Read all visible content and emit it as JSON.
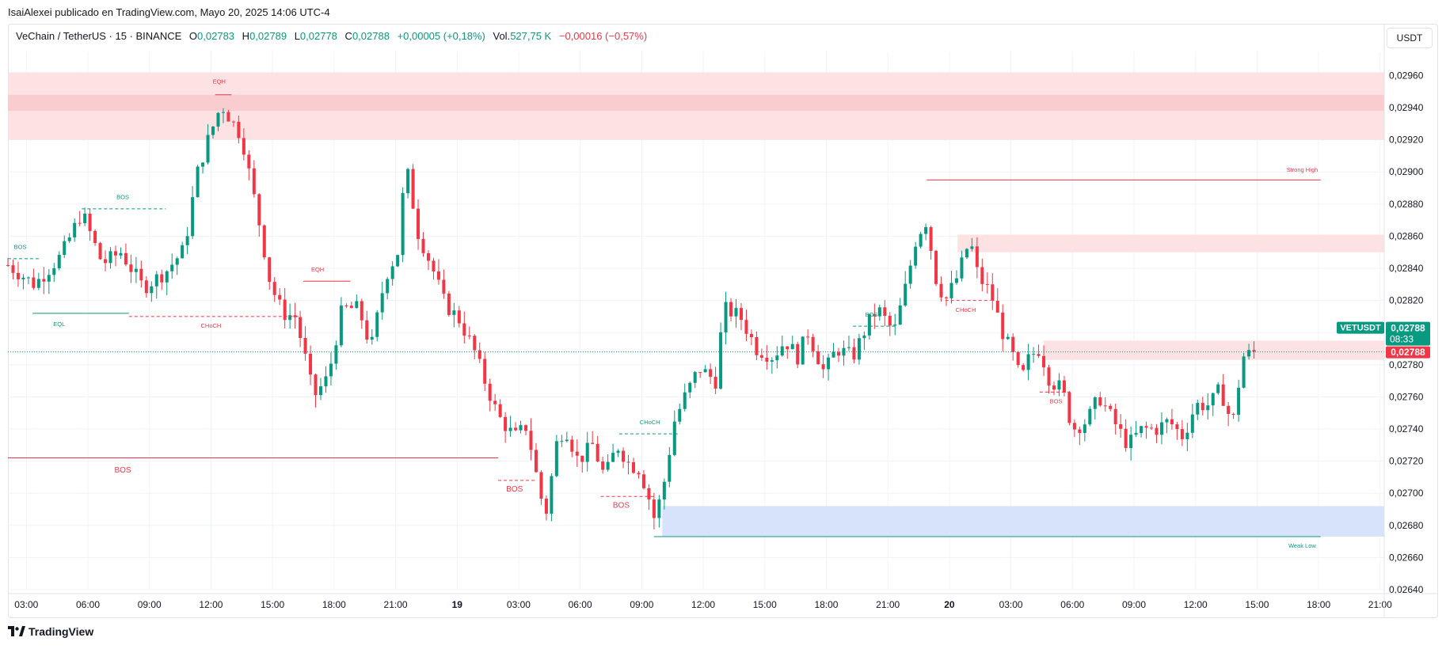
{
  "header": {
    "publish_note": "IsaiAlexei publicado en TradingView.com, Mayo 20, 2025 14:06 UTC-4",
    "symbol": "VeChain / TetherUS · 15 · BINANCE",
    "open_label": "O",
    "open": "0,02783",
    "high_label": "H",
    "high": "0,02789",
    "low_label": "L",
    "low": "0,02778",
    "close_label": "C",
    "close": "0,02788",
    "change": "+0,00005 (+0,18%)",
    "vol_label": "Vol.",
    "vol": "527,75 K",
    "vol_change": "−0,00016 (−0,57%)",
    "currency_button": "USDT"
  },
  "footer": {
    "brand": "TradingView"
  },
  "colors": {
    "up": "#089981",
    "down": "#f23645",
    "supply_zone": "#fbd5d8",
    "demand_zone": "#d6e3fb",
    "grid": "#f0f3fa"
  },
  "chart_data": {
    "type": "candlestick",
    "symbol": "VETUSDT",
    "ylim": [
      0.0264,
      0.02975
    ],
    "y_ticks": [
      "0,02640",
      "0,02660",
      "0,02680",
      "0,02700",
      "0,02720",
      "0,02740",
      "0,02760",
      "0,02780",
      "0,02800",
      "0,02820",
      "0,02840",
      "0,02860",
      "0,02880",
      "0,02900",
      "0,02920",
      "0,02940",
      "0,02960"
    ],
    "x_ticks": [
      {
        "h": 3,
        "label": "03:00"
      },
      {
        "h": 6,
        "label": "06:00"
      },
      {
        "h": 9,
        "label": "09:00"
      },
      {
        "h": 12,
        "label": "12:00"
      },
      {
        "h": 15,
        "label": "15:00"
      },
      {
        "h": 18,
        "label": "18:00"
      },
      {
        "h": 21,
        "label": "21:00"
      },
      {
        "h": 24,
        "label": "19"
      },
      {
        "h": 27,
        "label": "03:00"
      },
      {
        "h": 30,
        "label": "06:00"
      },
      {
        "h": 33,
        "label": "09:00"
      },
      {
        "h": 36,
        "label": "12:00"
      },
      {
        "h": 39,
        "label": "15:00"
      },
      {
        "h": 42,
        "label": "18:00"
      },
      {
        "h": 45,
        "label": "21:00"
      },
      {
        "h": 48,
        "label": "20"
      },
      {
        "h": 51,
        "label": "03:00"
      },
      {
        "h": 54,
        "label": "06:00"
      },
      {
        "h": 57,
        "label": "09:00"
      },
      {
        "h": 60,
        "label": "12:00"
      },
      {
        "h": 63,
        "label": "15:00"
      },
      {
        "h": 66,
        "label": "18:00"
      },
      {
        "h": 69,
        "label": "21:00"
      }
    ],
    "x_range_hours": [
      2.1,
      69.2
    ],
    "last_price_label": "VETUSDT",
    "last_price": "0,02788",
    "countdown": "08:33",
    "close_marker": "0,02788",
    "price_line": 0.02788,
    "anchors": [
      [
        2.1,
        0.02842
      ],
      [
        3.4,
        0.0283
      ],
      [
        4.7,
        0.02848
      ],
      [
        5.7,
        0.02875
      ],
      [
        6.7,
        0.02843
      ],
      [
        7.6,
        0.0285
      ],
      [
        8.7,
        0.02828
      ],
      [
        9.8,
        0.02838
      ],
      [
        10.7,
        0.02852
      ],
      [
        11.3,
        0.02898
      ],
      [
        11.8,
        0.02918
      ],
      [
        12.5,
        0.02942
      ],
      [
        13.5,
        0.02922
      ],
      [
        14.4,
        0.02865
      ],
      [
        14.9,
        0.0283
      ],
      [
        15.5,
        0.02812
      ],
      [
        16.1,
        0.0281
      ],
      [
        16.5,
        0.0279
      ],
      [
        17.0,
        0.0276
      ],
      [
        17.7,
        0.02772
      ],
      [
        18.4,
        0.02815
      ],
      [
        19.2,
        0.02815
      ],
      [
        19.8,
        0.0279
      ],
      [
        20.5,
        0.02835
      ],
      [
        21.1,
        0.0285
      ],
      [
        21.5,
        0.02905
      ],
      [
        22.1,
        0.02862
      ],
      [
        22.8,
        0.0284
      ],
      [
        23.4,
        0.02818
      ],
      [
        24.1,
        0.02808
      ],
      [
        24.8,
        0.0279
      ],
      [
        25.4,
        0.02768
      ],
      [
        26.0,
        0.02748
      ],
      [
        26.8,
        0.02735
      ],
      [
        27.4,
        0.02742
      ],
      [
        27.8,
        0.02715
      ],
      [
        28.3,
        0.02685
      ],
      [
        28.9,
        0.02735
      ],
      [
        29.3,
        0.0274
      ],
      [
        29.9,
        0.0272
      ],
      [
        30.6,
        0.0273
      ],
      [
        31.2,
        0.0271
      ],
      [
        31.8,
        0.0273
      ],
      [
        32.4,
        0.02718
      ],
      [
        32.9,
        0.02715
      ],
      [
        33.4,
        0.02695
      ],
      [
        33.6,
        0.02685
      ],
      [
        34.0,
        0.027
      ],
      [
        34.6,
        0.02745
      ],
      [
        35.1,
        0.0276
      ],
      [
        35.8,
        0.02778
      ],
      [
        36.6,
        0.0277
      ],
      [
        37.0,
        0.02815
      ],
      [
        37.8,
        0.0281
      ],
      [
        38.6,
        0.0279
      ],
      [
        39.4,
        0.02785
      ],
      [
        40.0,
        0.02795
      ],
      [
        40.6,
        0.02785
      ],
      [
        41.1,
        0.028
      ],
      [
        41.9,
        0.02775
      ],
      [
        42.5,
        0.0279
      ],
      [
        43.3,
        0.02785
      ],
      [
        44.0,
        0.02805
      ],
      [
        44.5,
        0.02815
      ],
      [
        45.3,
        0.028
      ],
      [
        45.9,
        0.0283
      ],
      [
        46.4,
        0.0286
      ],
      [
        46.9,
        0.0287
      ],
      [
        47.3,
        0.02835
      ],
      [
        47.8,
        0.0282
      ],
      [
        48.4,
        0.02835
      ],
      [
        49.0,
        0.02858
      ],
      [
        49.4,
        0.02835
      ],
      [
        50.0,
        0.02825
      ],
      [
        50.6,
        0.028
      ],
      [
        51.1,
        0.02785
      ],
      [
        51.5,
        0.0277
      ],
      [
        51.9,
        0.02785
      ],
      [
        52.4,
        0.0279
      ],
      [
        52.9,
        0.0277
      ],
      [
        53.5,
        0.02765
      ],
      [
        54.0,
        0.0274
      ],
      [
        54.7,
        0.02745
      ],
      [
        55.3,
        0.0276
      ],
      [
        56.0,
        0.02745
      ],
      [
        56.7,
        0.0273
      ],
      [
        57.4,
        0.0274
      ],
      [
        58.1,
        0.0274
      ],
      [
        58.7,
        0.02745
      ],
      [
        59.4,
        0.02735
      ],
      [
        60.0,
        0.02755
      ],
      [
        60.7,
        0.02755
      ],
      [
        61.2,
        0.02765
      ],
      [
        61.8,
        0.02742
      ],
      [
        62.3,
        0.02785
      ],
      [
        62.9,
        0.02788
      ]
    ],
    "zones": [
      {
        "x1h": 2.1,
        "x2h": 69.2,
        "y1": 0.0292,
        "y2": 0.02962,
        "color": "#fde2e4"
      },
      {
        "x1h": 2.1,
        "x2h": 69.2,
        "y1": 0.02938,
        "y2": 0.02948,
        "color": "#f9ccd0"
      },
      {
        "x1h": 48.4,
        "x2h": 69.2,
        "y1": 0.0285,
        "y2": 0.02861,
        "color": "#fde2e4"
      },
      {
        "x1h": 52.6,
        "x2h": 69.2,
        "y1": 0.02783,
        "y2": 0.02795,
        "color": "#fde2e4"
      },
      {
        "x1h": 34.0,
        "x2h": 69.2,
        "y1": 0.02673,
        "y2": 0.02692,
        "color": "#d6e3fb"
      }
    ],
    "lines": [
      {
        "x1h": 2.1,
        "x2h": 3.6,
        "y": 0.02846,
        "color": "#089981",
        "dash": true,
        "label": "BOS",
        "lx": 2.7,
        "ly": 0.02852
      },
      {
        "x1h": 5.7,
        "x2h": 9.8,
        "y": 0.02877,
        "color": "#089981",
        "dash": true,
        "label": "BOS",
        "lx": 7.7,
        "ly": 0.02883
      },
      {
        "x1h": 12.2,
        "x2h": 13.0,
        "y": 0.02948,
        "color": "#f23645",
        "dash": false,
        "label": "EQH",
        "lx": 12.4,
        "ly": 0.02955
      },
      {
        "x1h": 16.5,
        "x2h": 18.8,
        "y": 0.02832,
        "color": "#f23645",
        "dash": false,
        "label": "EQH",
        "lx": 17.2,
        "ly": 0.02838
      },
      {
        "x1h": 8.0,
        "x2h": 16.4,
        "y": 0.0281,
        "color": "#f23645",
        "dash": true,
        "label": "CHoCH",
        "lx": 12.0,
        "ly": 0.02803
      },
      {
        "x1h": 3.3,
        "x2h": 8.0,
        "y": 0.02812,
        "color": "#089981",
        "dash": false,
        "label": "EQL",
        "lx": 4.6,
        "ly": 0.02804
      },
      {
        "x1h": 2.1,
        "x2h": 26.0,
        "y": 0.02722,
        "color": "#f23645",
        "dash": false,
        "label": "BOS",
        "lx": 7.7,
        "ly": 0.02713
      },
      {
        "x1h": 26.0,
        "x2h": 27.8,
        "y": 0.02708,
        "color": "#f23645",
        "dash": true,
        "label": "BOS",
        "lx": 26.8,
        "ly": 0.02701
      },
      {
        "x1h": 31.0,
        "x2h": 33.6,
        "y": 0.02698,
        "color": "#f23645",
        "dash": true,
        "label": "BOS",
        "lx": 32.0,
        "ly": 0.02691
      },
      {
        "x1h": 31.9,
        "x2h": 34.8,
        "y": 0.02737,
        "color": "#089981",
        "dash": true,
        "label": "CHoCH",
        "lx": 33.4,
        "ly": 0.02743
      },
      {
        "x1h": 43.3,
        "x2h": 45.4,
        "y": 0.02804,
        "color": "#089981",
        "dash": true,
        "label": "BOS",
        "lx": 44.2,
        "ly": 0.0281
      },
      {
        "x1h": 47.8,
        "x2h": 50.0,
        "y": 0.0282,
        "color": "#f23645",
        "dash": true,
        "label": "CHoCH",
        "lx": 48.8,
        "ly": 0.02813
      },
      {
        "x1h": 52.4,
        "x2h": 54.0,
        "y": 0.02763,
        "color": "#f23645",
        "dash": true,
        "label": "BOS",
        "lx": 53.2,
        "ly": 0.02756
      },
      {
        "x1h": 46.9,
        "x2h": 66.1,
        "y": 0.02895,
        "color": "#f23645",
        "dash": false,
        "label": "Strong High",
        "lx": 65.2,
        "ly": 0.029
      },
      {
        "x1h": 33.6,
        "x2h": 66.1,
        "y": 0.02673,
        "color": "#089981",
        "dash": false,
        "label": "Weak Low",
        "lx": 65.2,
        "ly": 0.02666
      }
    ]
  }
}
